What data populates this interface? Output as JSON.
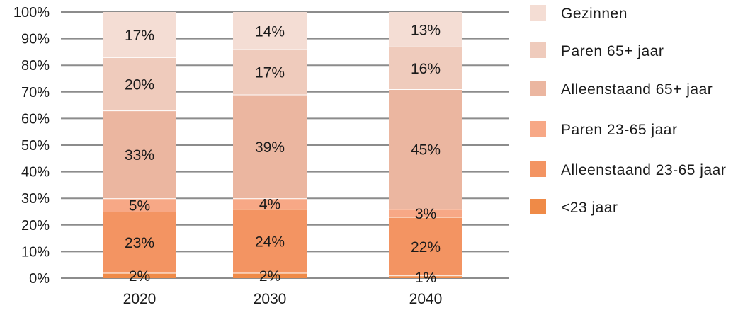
{
  "chart_data": {
    "type": "bar",
    "stacked": true,
    "categories": [
      "2020",
      "2030",
      "2040"
    ],
    "y_ticks": [
      "0%",
      "10%",
      "20%",
      "30%",
      "40%",
      "50%",
      "60%",
      "70%",
      "80%",
      "90%",
      "100%"
    ],
    "ylim": [
      0,
      100
    ],
    "grid": true,
    "legend_position": "right",
    "series": [
      {
        "name": "<23 jaar",
        "color": "#ef8a47",
        "values": [
          2,
          2,
          1
        ],
        "labels": [
          "2%",
          "2%",
          "1%"
        ]
      },
      {
        "name": "Alleenstaand 23-65 jaar",
        "color": "#f39462",
        "values": [
          23,
          24,
          22
        ],
        "labels": [
          "23%",
          "24%",
          "22%"
        ]
      },
      {
        "name": "Paren 23-65 jaar",
        "color": "#f7a886",
        "values": [
          5,
          4,
          3
        ],
        "labels": [
          "5%",
          "4%",
          "3%"
        ]
      },
      {
        "name": "Alleenstaand 65+ jaar",
        "color": "#ebb6a0",
        "values": [
          33,
          39,
          45
        ],
        "labels": [
          "33%",
          "39%",
          "45%"
        ]
      },
      {
        "name": "Paren 65+ jaar",
        "color": "#efcbbc",
        "values": [
          20,
          17,
          16
        ],
        "labels": [
          "20%",
          "17%",
          "16%"
        ]
      },
      {
        "name": "Gezinnen",
        "color": "#f4ddd4",
        "values": [
          17,
          14,
          13
        ],
        "labels": [
          "17%",
          "14%",
          "13%"
        ]
      }
    ]
  }
}
